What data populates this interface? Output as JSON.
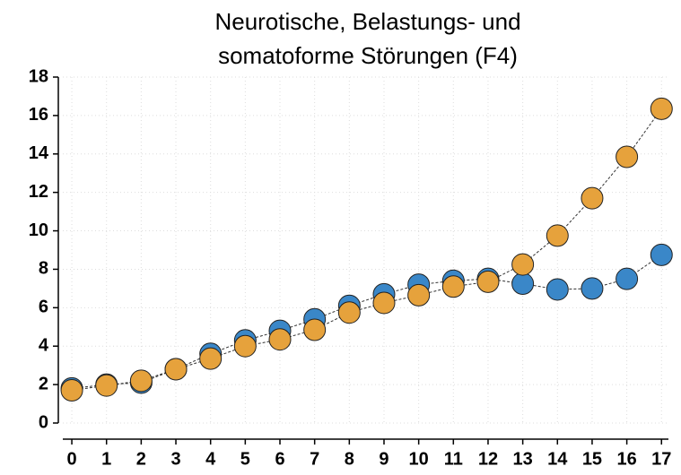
{
  "chart_data": {
    "type": "line",
    "title": [
      "Neurotische, Belastungs- und",
      "somatoforme Störungen (F4)"
    ],
    "x": [
      0,
      1,
      2,
      3,
      4,
      5,
      6,
      7,
      8,
      9,
      10,
      11,
      12,
      13,
      14,
      15,
      16,
      17
    ],
    "series": [
      {
        "color": "#3a87c8",
        "values": [
          1.8,
          2.0,
          2.1,
          2.8,
          3.6,
          4.3,
          4.8,
          5.4,
          6.1,
          6.7,
          7.2,
          7.4,
          7.5,
          7.25,
          6.95,
          7.0,
          7.5,
          8.75
        ]
      },
      {
        "color": "#e6a23c",
        "values": [
          1.7,
          1.95,
          2.2,
          2.8,
          3.35,
          4.0,
          4.35,
          4.85,
          5.75,
          6.25,
          6.65,
          7.1,
          7.35,
          8.25,
          9.75,
          11.7,
          13.85,
          16.35
        ]
      }
    ],
    "xlim": [
      -0.26,
      17.2
    ],
    "xticks": [
      0,
      1,
      2,
      3,
      4,
      5,
      6,
      7,
      8,
      9,
      10,
      11,
      12,
      13,
      14,
      15,
      16,
      17
    ],
    "ylim": [
      0,
      18
    ],
    "yticks": [
      0,
      2,
      4,
      6,
      8,
      10,
      12,
      14,
      16,
      18
    ],
    "grid": true
  }
}
